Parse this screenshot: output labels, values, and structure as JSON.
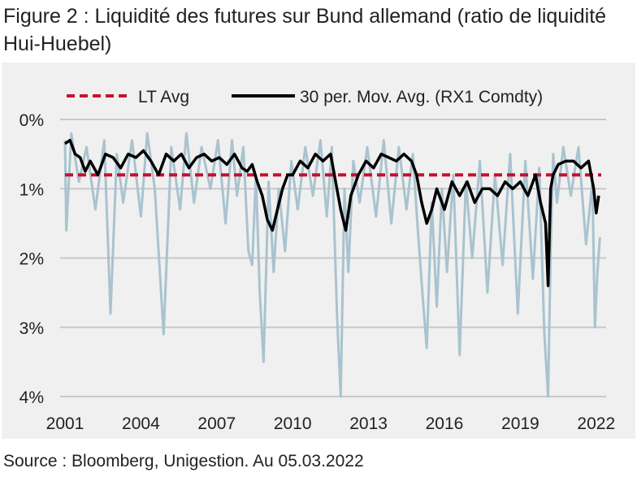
{
  "figure_title": "Figure 2 : Liquidité des futures sur Bund allemand (ratio de liquidité Hui-Huebel)",
  "source": "Source : Bloomberg, Unigestion. Au 05.03.2022",
  "colors": {
    "lt_avg": "#c8102e",
    "mov_avg": "#000000",
    "raw": "#a9c3cf",
    "background": "#f0f0f0",
    "grid": "#c8c8c8"
  },
  "chart_data": {
    "type": "line",
    "legend_position": "top",
    "grid": true,
    "y_inverted": true,
    "ylim": [
      0,
      4
    ],
    "y_ticks": [
      0,
      1,
      2,
      3,
      4
    ],
    "y_tick_labels": [
      "0%",
      "1%",
      "2%",
      "3%",
      "4%"
    ],
    "xlim": [
      2001,
      2022.2
    ],
    "x_ticks": [
      2001,
      2004,
      2007,
      2010,
      2013,
      2016,
      2019,
      2022
    ],
    "x_tick_labels": [
      "2001",
      "2004",
      "2007",
      "2010",
      "2013",
      "2016",
      "2019",
      "2022"
    ],
    "series": [
      {
        "name": "LT Avg",
        "style": "dashed",
        "x": [
          2001,
          2022.2
        ],
        "values": [
          0.8,
          0.8
        ]
      },
      {
        "name": "30 per. Mov. Avg. (RX1 Comdty)",
        "style": "solid",
        "x": [
          2001.0,
          2001.2,
          2001.4,
          2001.6,
          2001.8,
          2002.0,
          2002.3,
          2002.6,
          2002.9,
          2003.2,
          2003.5,
          2003.8,
          2004.1,
          2004.4,
          2004.7,
          2005.0,
          2005.3,
          2005.6,
          2005.9,
          2006.2,
          2006.5,
          2006.8,
          2007.1,
          2007.4,
          2007.7,
          2008.0,
          2008.2,
          2008.4,
          2008.6,
          2008.8,
          2009.0,
          2009.2,
          2009.4,
          2009.6,
          2009.8,
          2010.0,
          2010.3,
          2010.6,
          2010.9,
          2011.2,
          2011.5,
          2011.7,
          2011.9,
          2012.1,
          2012.3,
          2012.6,
          2012.9,
          2013.2,
          2013.5,
          2013.8,
          2014.1,
          2014.4,
          2014.7,
          2014.9,
          2015.1,
          2015.3,
          2015.5,
          2015.7,
          2016.0,
          2016.3,
          2016.6,
          2016.9,
          2017.2,
          2017.5,
          2017.8,
          2018.1,
          2018.4,
          2018.7,
          2019.0,
          2019.3,
          2019.6,
          2019.8,
          2020.0,
          2020.1,
          2020.2,
          2020.3,
          2020.5,
          2020.8,
          2021.1,
          2021.4,
          2021.7,
          2021.9,
          2022.0,
          2022.1
        ],
        "values": [
          0.35,
          0.3,
          0.5,
          0.55,
          0.75,
          0.6,
          0.8,
          0.5,
          0.55,
          0.7,
          0.5,
          0.55,
          0.45,
          0.6,
          0.8,
          0.5,
          0.6,
          0.5,
          0.7,
          0.55,
          0.5,
          0.6,
          0.55,
          0.65,
          0.5,
          0.7,
          0.75,
          0.65,
          0.9,
          1.1,
          1.45,
          1.6,
          1.3,
          1.0,
          0.8,
          0.8,
          0.6,
          0.7,
          0.5,
          0.6,
          0.5,
          0.9,
          1.3,
          1.6,
          1.1,
          0.8,
          0.6,
          0.7,
          0.5,
          0.55,
          0.6,
          0.5,
          0.6,
          0.8,
          1.2,
          1.5,
          1.3,
          1.0,
          1.3,
          0.9,
          1.1,
          0.9,
          1.2,
          1.0,
          1.0,
          1.1,
          0.9,
          1.0,
          0.9,
          1.1,
          0.8,
          1.2,
          1.5,
          2.4,
          1.0,
          0.8,
          0.65,
          0.6,
          0.6,
          0.7,
          0.6,
          1.0,
          1.35,
          1.1
        ]
      },
      {
        "name": "RX1 Comdty",
        "style": "raw",
        "x": [
          2001.0,
          2001.05,
          2001.25,
          2001.55,
          2001.85,
          2002.2,
          2002.55,
          2002.8,
          2003.05,
          2003.3,
          2003.65,
          2004.0,
          2004.25,
          2004.55,
          2004.9,
          2005.2,
          2005.55,
          2005.8,
          2006.1,
          2006.4,
          2006.75,
          2007.05,
          2007.35,
          2007.6,
          2007.8,
          2008.05,
          2008.25,
          2008.4,
          2008.55,
          2008.7,
          2008.85,
          2009.05,
          2009.25,
          2009.45,
          2009.7,
          2009.95,
          2010.2,
          2010.5,
          2010.8,
          2011.1,
          2011.35,
          2011.55,
          2011.75,
          2011.9,
          2012.05,
          2012.2,
          2012.4,
          2012.65,
          2012.95,
          2013.3,
          2013.6,
          2013.9,
          2014.2,
          2014.5,
          2014.75,
          2014.95,
          2015.15,
          2015.3,
          2015.5,
          2015.7,
          2015.9,
          2016.1,
          2016.35,
          2016.6,
          2016.85,
          2017.1,
          2017.4,
          2017.7,
          2018.0,
          2018.3,
          2018.6,
          2018.9,
          2019.2,
          2019.5,
          2019.75,
          2019.95,
          2020.1,
          2020.2,
          2020.3,
          2020.45,
          2020.7,
          2021.0,
          2021.3,
          2021.6,
          2021.85,
          2021.95,
          2022.05,
          2022.15
        ],
        "values": [
          0.3,
          1.6,
          0.2,
          0.9,
          0.4,
          1.3,
          0.3,
          2.8,
          0.5,
          1.2,
          0.3,
          1.4,
          0.2,
          1.0,
          3.1,
          0.4,
          1.3,
          0.2,
          1.2,
          0.4,
          1.0,
          0.3,
          1.5,
          0.3,
          1.1,
          0.4,
          1.9,
          2.1,
          0.8,
          2.5,
          3.5,
          0.9,
          2.2,
          1.0,
          1.9,
          0.6,
          1.3,
          0.4,
          1.1,
          0.3,
          1.4,
          0.4,
          2.8,
          4.0,
          1.0,
          2.2,
          0.6,
          1.2,
          0.4,
          1.4,
          0.3,
          1.5,
          0.4,
          1.3,
          0.5,
          1.6,
          2.6,
          3.3,
          1.2,
          2.7,
          1.0,
          2.2,
          0.8,
          3.4,
          0.9,
          2.0,
          0.6,
          2.5,
          0.8,
          2.1,
          0.5,
          2.8,
          0.6,
          2.3,
          0.7,
          3.1,
          4.0,
          1.9,
          0.5,
          1.2,
          0.4,
          1.1,
          0.4,
          1.8,
          0.9,
          3.0,
          2.2,
          1.7
        ]
      }
    ]
  }
}
